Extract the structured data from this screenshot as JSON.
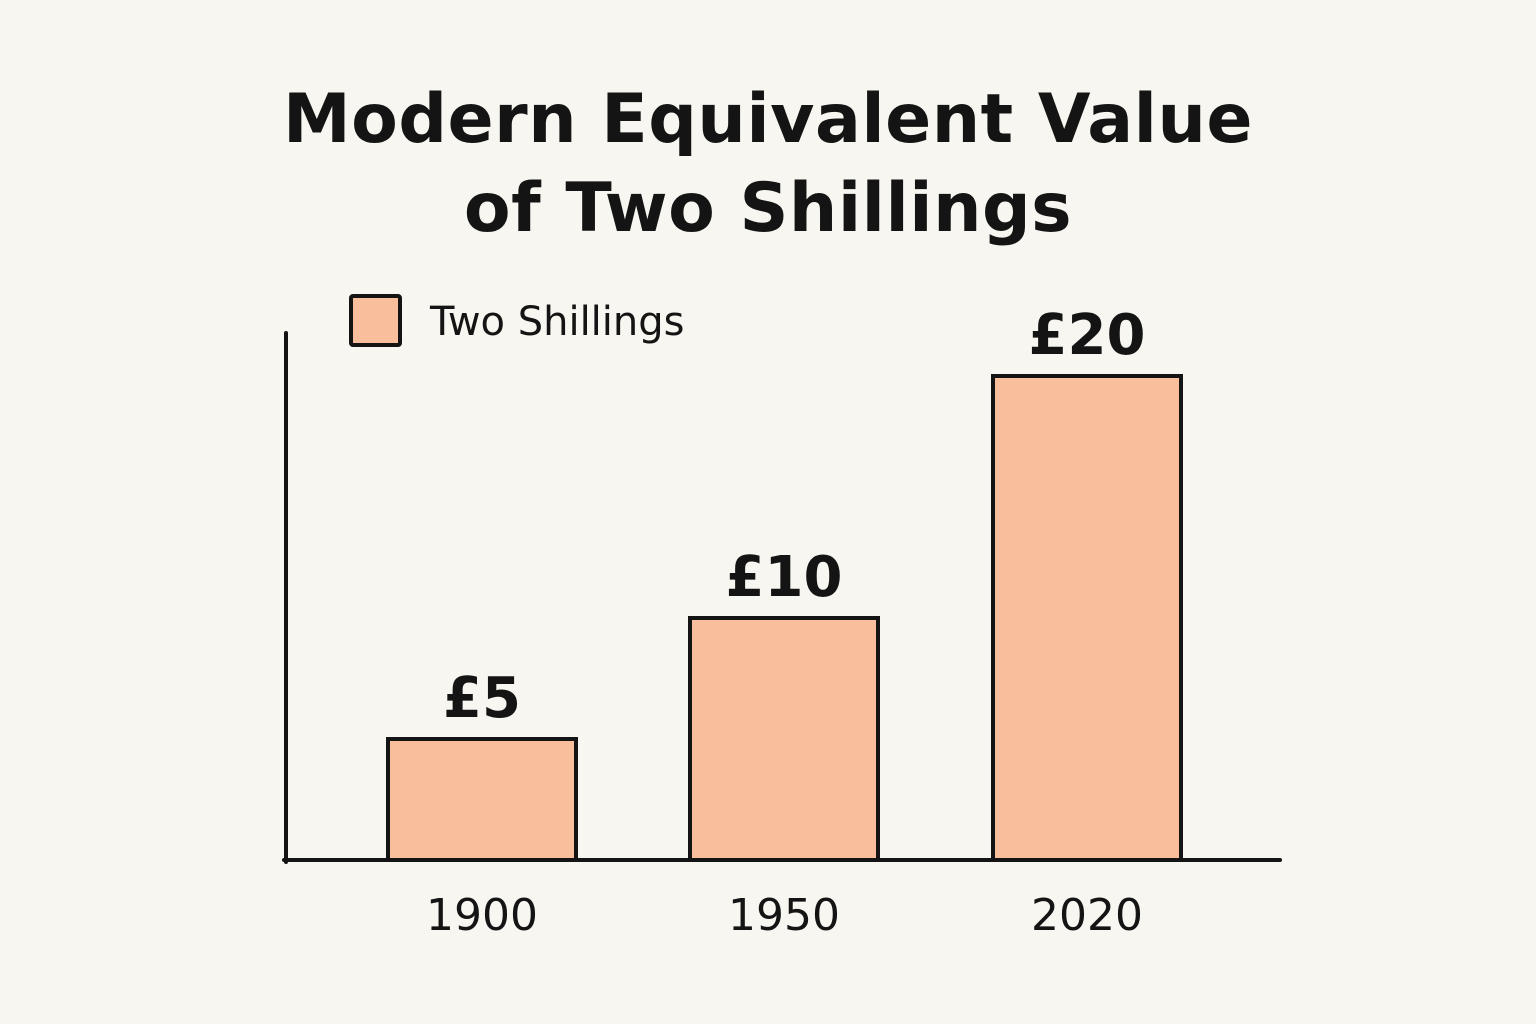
{
  "chart_data": {
    "type": "bar",
    "title_lines": [
      "Modern Equivalent Value",
      "of Two Shillings"
    ],
    "xlabel": "",
    "ylabel": "",
    "categories": [
      "1900",
      "1950",
      "2020"
    ],
    "series": [
      {
        "name": "Two Shillings",
        "values": [
          5,
          10,
          20
        ],
        "value_labels": [
          "£5",
          "£10",
          "£20"
        ],
        "color": "#f9bf9c"
      }
    ],
    "ylim": [
      0,
      24
    ],
    "legend": "top-left",
    "grid": false
  },
  "colors": {
    "background": "#f8f6f0",
    "bar_fill": "#f9bf9c",
    "outline": "#141414"
  }
}
